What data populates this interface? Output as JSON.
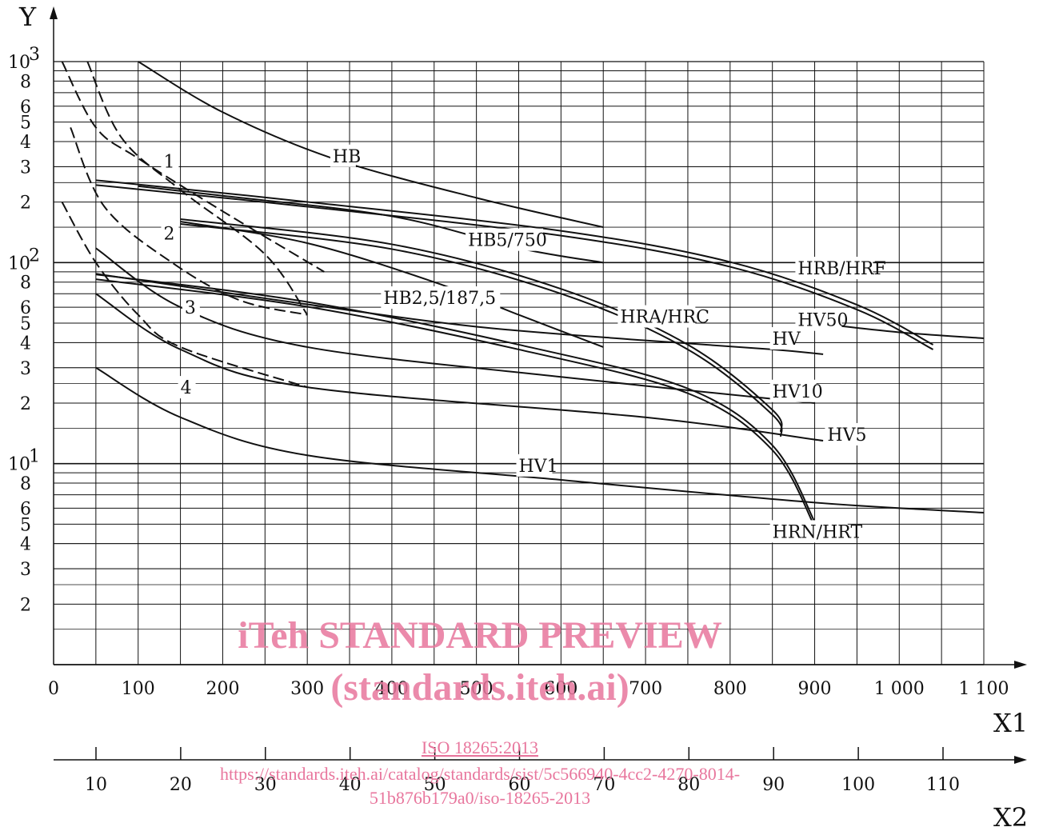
{
  "chart_data": {
    "type": "line",
    "y_axis": {
      "label": "Y",
      "scale": "log",
      "range": [
        1,
        1000
      ],
      "major_tick_labels": [
        {
          "value": 1000,
          "base": "10",
          "exp": "3"
        },
        {
          "value": 800,
          "text": "8"
        },
        {
          "value": 600,
          "text": "6"
        },
        {
          "value": 500,
          "text": "5"
        },
        {
          "value": 400,
          "text": "4"
        },
        {
          "value": 300,
          "text": "3"
        },
        {
          "value": 200,
          "text": "2"
        },
        {
          "value": 100,
          "base": "10",
          "exp": "2"
        },
        {
          "value": 80,
          "text": "8"
        },
        {
          "value": 60,
          "text": "6"
        },
        {
          "value": 50,
          "text": "5"
        },
        {
          "value": 40,
          "text": "4"
        },
        {
          "value": 30,
          "text": "3"
        },
        {
          "value": 20,
          "text": "2"
        },
        {
          "value": 10,
          "base": "10",
          "exp": "1"
        },
        {
          "value": 8,
          "text": "8"
        },
        {
          "value": 6,
          "text": "6"
        },
        {
          "value": 5,
          "text": "5"
        },
        {
          "value": 4,
          "text": "4"
        },
        {
          "value": 3,
          "text": "3"
        },
        {
          "value": 2,
          "text": "2"
        }
      ]
    },
    "x1_axis": {
      "label": "X1",
      "range": [
        0,
        1100
      ],
      "tick_labels": [
        "0",
        "100",
        "200",
        "300",
        "400",
        "500",
        "600",
        "700",
        "800",
        "900",
        "1 000",
        "1 100"
      ]
    },
    "x2_axis": {
      "label": "X2",
      "range": [
        5,
        115
      ],
      "tick_labels": [
        "10",
        "20",
        "30",
        "40",
        "50",
        "60",
        "70",
        "80",
        "90",
        "100",
        "110"
      ]
    },
    "grid": true,
    "series": [
      {
        "name": "HB",
        "points": [
          [
            100,
            1000
          ],
          [
            200,
            560
          ],
          [
            330,
            330
          ],
          [
            500,
            210
          ],
          [
            650,
            150
          ]
        ]
      },
      {
        "name": "HB5/750",
        "points": [
          [
            100,
            240
          ],
          [
            200,
            215
          ],
          [
            400,
            170
          ],
          [
            550,
            118
          ],
          [
            650,
            100
          ]
        ]
      },
      {
        "name": "HB2,5/187,5",
        "points": [
          [
            150,
            160
          ],
          [
            300,
            125
          ],
          [
            450,
            80
          ],
          [
            550,
            55
          ],
          [
            650,
            38
          ]
        ]
      },
      {
        "name": "HRB/HRF",
        "dashless": true,
        "double": true,
        "points": [
          [
            50,
            250
          ],
          [
            300,
            195
          ],
          [
            600,
            140
          ],
          [
            800,
            98
          ],
          [
            950,
            60
          ],
          [
            1040,
            38
          ]
        ]
      },
      {
        "name": "HRA/HRC",
        "double": true,
        "points": [
          [
            150,
            160
          ],
          [
            400,
            120
          ],
          [
            600,
            72
          ],
          [
            750,
            38
          ],
          [
            850,
            18
          ],
          [
            860,
            14
          ]
        ]
      },
      {
        "name": "HRN/HRT",
        "double": true,
        "points": [
          [
            50,
            85
          ],
          [
            300,
            62
          ],
          [
            550,
            38
          ],
          [
            750,
            23
          ],
          [
            850,
            12
          ],
          [
            900,
            5
          ]
        ]
      },
      {
        "name": "HV50",
        "points": [
          [
            900,
            50
          ],
          [
            1000,
            45
          ],
          [
            1100,
            42
          ]
        ]
      },
      {
        "name": "HV",
        "points": [
          [
            50,
            88
          ],
          [
            300,
            62
          ],
          [
            500,
            48
          ],
          [
            700,
            41
          ],
          [
            850,
            37
          ],
          [
            910,
            35
          ]
        ]
      },
      {
        "name": "HV10",
        "points": [
          [
            50,
            118
          ],
          [
            150,
            60
          ],
          [
            300,
            38
          ],
          [
            600,
            27
          ],
          [
            900,
            20
          ]
        ]
      },
      {
        "name": "HV5",
        "points": [
          [
            50,
            70
          ],
          [
            150,
            37
          ],
          [
            300,
            24
          ],
          [
            700,
            17
          ],
          [
            910,
            13
          ]
        ]
      },
      {
        "name": "HV1",
        "points": [
          [
            50,
            30
          ],
          [
            150,
            17
          ],
          [
            300,
            11
          ],
          [
            600,
            8.3
          ],
          [
            900,
            6.4
          ],
          [
            1100,
            5.7
          ]
        ]
      },
      {
        "name": "1",
        "dashed": true,
        "points": [
          [
            10,
            1000
          ],
          [
            50,
            470
          ],
          [
            100,
            330
          ],
          [
            200,
            180
          ],
          [
            320,
            90
          ]
        ]
      },
      {
        "name": "2",
        "dashed": true,
        "points": [
          [
            40,
            1000
          ],
          [
            80,
            420
          ],
          [
            150,
            230
          ],
          [
            250,
            110
          ],
          [
            300,
            55
          ]
        ]
      },
      {
        "name": "3",
        "dashed": true,
        "points": [
          [
            20,
            470
          ],
          [
            60,
            190
          ],
          [
            140,
            100
          ],
          [
            220,
            65
          ],
          [
            300,
            55
          ]
        ]
      },
      {
        "name": "4",
        "dashed": true,
        "points": [
          [
            10,
            200
          ],
          [
            50,
            100
          ],
          [
            100,
            55
          ],
          [
            150,
            38
          ],
          [
            300,
            24
          ]
        ]
      }
    ],
    "curve_labels": [
      {
        "text": "HB",
        "series": "HB"
      },
      {
        "text": "HB5/750",
        "series": "HB5/750"
      },
      {
        "text": "HB2,5/187,5",
        "series": "HB2,5/187,5"
      },
      {
        "text": "HRB/HRF",
        "series": "HRB/HRF"
      },
      {
        "text": "HRA/HRC",
        "series": "HRA/HRC"
      },
      {
        "text": "HV50",
        "series": "HV50"
      },
      {
        "text": "HV",
        "series": "HV"
      },
      {
        "text": "HV10",
        "series": "HV10"
      },
      {
        "text": "HV5",
        "series": "HV5"
      },
      {
        "text": "HV1",
        "series": "HV1"
      },
      {
        "text": "HRN/HRT",
        "series": "HRN/HRT"
      },
      {
        "text": "1",
        "series": "1"
      },
      {
        "text": "2",
        "series": "2"
      },
      {
        "text": "3",
        "series": "3"
      },
      {
        "text": "4",
        "series": "4"
      }
    ]
  },
  "watermark": {
    "line1": "iTeh STANDARD PREVIEW",
    "line2": "(standards.iteh.ai)",
    "iso": "ISO 18265:2013",
    "url1": "https://standards.iteh.ai/catalog/standards/sist/5c566940-4cc2-4270-8014-",
    "url2": "51b876b179a0/iso-18265-2013",
    "color": "#e8769d"
  }
}
